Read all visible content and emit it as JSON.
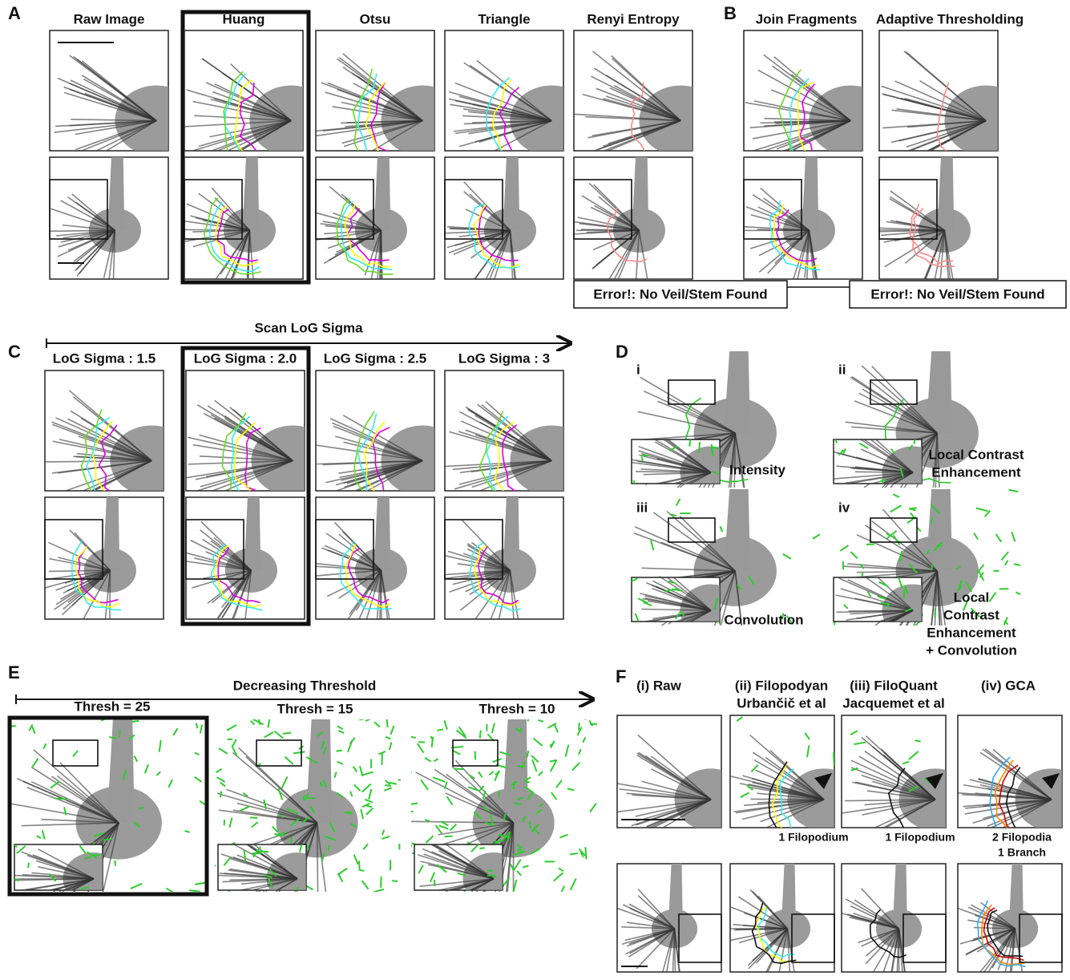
{
  "A": {
    "letter": "A",
    "titles": [
      "Raw Image",
      "Huang",
      "Otsu",
      "Triangle",
      "Renyi Entropy"
    ]
  },
  "B": {
    "letter": "B",
    "titles": [
      "Join Fragments",
      "Adaptive Thresholding"
    ],
    "errors": [
      "Error!: No Veil/Stem Found",
      "Error!: No Veil/Stem Found"
    ]
  },
  "C": {
    "letter": "C",
    "axis_label": "Scan LoG Sigma",
    "titles": [
      "LoG Sigma : 1.5",
      "LoG Sigma : 2.0",
      "LoG Sigma : 2.5",
      "LoG Sigma : 3"
    ]
  },
  "D": {
    "letter": "D",
    "panels": [
      {
        "numeral": "i",
        "label": [
          "Intensity"
        ]
      },
      {
        "numeral": "ii",
        "label": [
          "Local Contrast",
          "Enhancement"
        ]
      },
      {
        "numeral": "iii",
        "label": [
          "Convolution"
        ]
      },
      {
        "numeral": "iv",
        "label": [
          "Local",
          "Contrast",
          "Enhancement",
          "+ Convolution"
        ]
      }
    ]
  },
  "E": {
    "letter": "E",
    "axis_label": "Decreasing Threshold",
    "titles": [
      "Thresh = 25",
      "Thresh = 15",
      "Thresh = 10"
    ]
  },
  "F": {
    "letter": "F",
    "titles": [
      [
        "(i) Raw"
      ],
      [
        "(ii) Filopodyan",
        "Urbančič et al"
      ],
      [
        "(iii) FiloQuant",
        "Jacquemet et al"
      ],
      [
        "(iv) GCA"
      ]
    ],
    "counts": [
      [
        "1 Filopodium"
      ],
      [
        "1 Filopodium"
      ],
      [
        "2 Filopodia",
        "1 Branch"
      ]
    ]
  }
}
